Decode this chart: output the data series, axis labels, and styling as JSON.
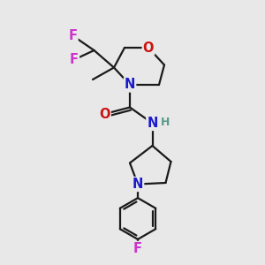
{
  "bg_color": "#e8e8e8",
  "bond_color": "#1a1a1a",
  "bond_width": 1.6,
  "atom_colors": {
    "C": "#1a1a1a",
    "H": "#5a9a8a",
    "N": "#1a1acc",
    "O": "#cc1111",
    "F": "#cc33cc"
  },
  "font_size_atom": 10.5,
  "font_size_H": 9
}
